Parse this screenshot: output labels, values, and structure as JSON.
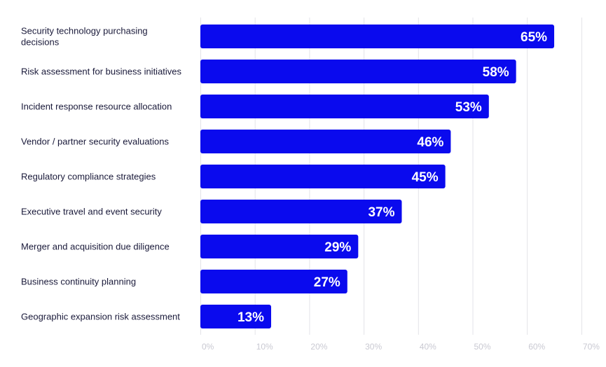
{
  "chart_data": {
    "type": "bar",
    "orientation": "horizontal",
    "categories": [
      [
        "Security technology purchasing",
        "decisions"
      ],
      [
        "Risk assessment for business initiatives"
      ],
      [
        "Incident response resource allocation"
      ],
      [
        "Vendor / partner security evaluations"
      ],
      [
        "Regulatory compliance strategies"
      ],
      [
        "Executive travel and event security"
      ],
      [
        "Merger and acquisition due diligence"
      ],
      [
        "Business continuity planning"
      ],
      [
        "Geographic expansion risk assessment"
      ]
    ],
    "values": [
      65,
      58,
      53,
      46,
      45,
      37,
      29,
      27,
      13
    ],
    "value_labels": [
      "65%",
      "58%",
      "53%",
      "46%",
      "45%",
      "37%",
      "29%",
      "27%",
      "13%"
    ],
    "xlim": [
      0,
      70
    ],
    "xticks": [
      0,
      10,
      20,
      30,
      40,
      50,
      60,
      70
    ],
    "xtick_labels": [
      "0%",
      "10%",
      "20%",
      "30%",
      "40%",
      "50%",
      "60%",
      "70%"
    ],
    "title": "",
    "xlabel": "",
    "ylabel": "",
    "grid": true,
    "legend": false,
    "bar_color": "#0a0aee"
  }
}
